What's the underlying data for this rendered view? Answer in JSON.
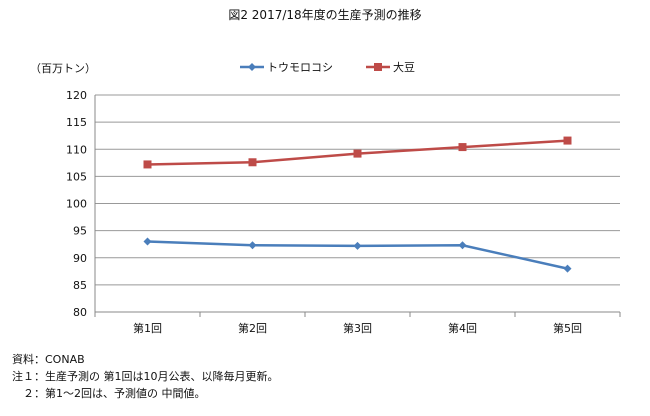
{
  "chart_data": {
    "type": "line",
    "title": "図2  2017/18年度の生産予測の推移",
    "ylabel": "（百万トン）",
    "xlabel": "",
    "categories": [
      "第1回",
      "第2回",
      "第3回",
      "第4回",
      "第5回"
    ],
    "ylim": [
      80,
      120
    ],
    "yticks": [
      80,
      85,
      90,
      95,
      100,
      105,
      110,
      115,
      120
    ],
    "grid": true,
    "legend_position": "top",
    "series": [
      {
        "name": "トウモロコシ",
        "color": "#4a7ebb",
        "marker": "diamond",
        "values": [
          93.0,
          92.3,
          92.2,
          92.3,
          88.0
        ]
      },
      {
        "name": "大豆",
        "color": "#be4b48",
        "marker": "square",
        "values": [
          107.2,
          107.6,
          109.2,
          110.4,
          111.6
        ]
      }
    ]
  },
  "notes": [
    "資料：CONAB",
    "注１：生産予測の 第1回は10月公表、以降毎月更新。",
    "　２：第1～2回は、予測値の 中間値。"
  ]
}
